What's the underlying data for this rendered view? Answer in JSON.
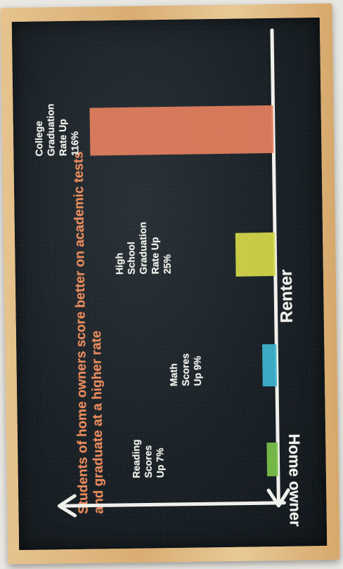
{
  "chart_data": {
    "type": "bar",
    "orientation": "horizontal",
    "title": "Students of home owners score better on academic tests and graduate at a higher rate",
    "axis_left_label": "Home owner",
    "axis_right_label": "Renter",
    "categories": [
      "Reading Scores Up 7%",
      "Math Scores Up 9%",
      "High School Graduation Rate Up 25%",
      "College Graduation Rate Up 116%"
    ],
    "values": [
      7,
      9,
      25,
      116
    ],
    "bar_colors": [
      "#7cc24a",
      "#3fb6cf",
      "#d6d94a",
      "#e6805f"
    ],
    "xlim": [
      0,
      120
    ],
    "grid": false,
    "legend": "none"
  },
  "labels": {
    "title": "Students of home owners score better on academic tests and graduate at a higher rate",
    "home_owner": "Home owner",
    "renter": "Renter",
    "bars": [
      [
        "Reading",
        "Scores",
        "Up 7%"
      ],
      [
        "Math",
        "Scores",
        "Up 9%"
      ],
      [
        "High",
        "School",
        "Graduation",
        "Rate Up",
        "25%"
      ],
      [
        "College",
        "Graduation",
        "Rate Up",
        "116%"
      ]
    ]
  }
}
